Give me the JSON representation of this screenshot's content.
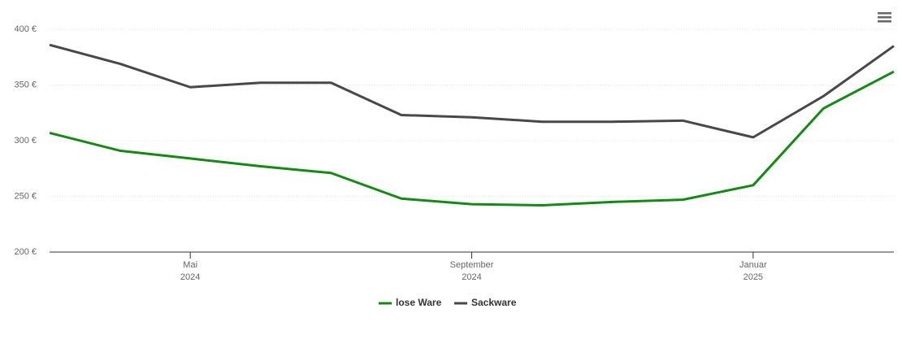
{
  "chart_data": {
    "type": "line",
    "x": [
      "2024-03",
      "2024-04",
      "2024-05",
      "2024-06",
      "2024-07",
      "2024-08",
      "2024-09",
      "2024-10",
      "2024-11",
      "2024-12",
      "2025-01",
      "2025-02",
      "2025-03"
    ],
    "series": [
      {
        "name": "lose Ware",
        "color": "#138a13",
        "values": [
          307,
          291,
          284,
          277,
          271,
          248,
          243,
          242,
          245,
          247,
          260,
          329,
          362
        ]
      },
      {
        "name": "Sackware",
        "color": "#484848",
        "values": [
          386,
          369,
          348,
          352,
          352,
          323,
          321,
          317,
          317,
          318,
          303,
          340,
          385
        ]
      }
    ],
    "xlim": [
      "2024-03",
      "2025-03"
    ],
    "xticks": [
      {
        "value": "2024-05",
        "label": "Mai",
        "year": "2024"
      },
      {
        "value": "2024-09",
        "label": "September",
        "year": "2024"
      },
      {
        "value": "2025-01",
        "label": "Januar",
        "year": "2025"
      }
    ],
    "ylim": [
      200,
      400
    ],
    "yticks": [
      {
        "value": 200,
        "label": "200 €"
      },
      {
        "value": 250,
        "label": "250 €"
      },
      {
        "value": 300,
        "label": "300 €"
      },
      {
        "value": 350,
        "label": "350 €"
      },
      {
        "value": 400,
        "label": "400 €"
      }
    ],
    "grid": true,
    "legend": "bottom"
  }
}
